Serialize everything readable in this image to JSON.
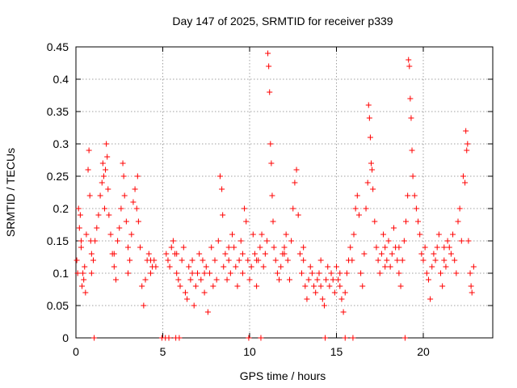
{
  "chart_data": {
    "type": "scatter",
    "title": "Day 147 of 2025, SRMTID for receiver p339",
    "xlabel": "GPS time / hours",
    "ylabel": "SRMTID / TECUs",
    "xlim": [
      0,
      24
    ],
    "ylim": [
      0,
      0.45
    ],
    "x_ticks": [
      0,
      5,
      10,
      15,
      20
    ],
    "y_ticks": [
      0,
      0.05,
      0.1,
      0.15,
      0.2,
      0.25,
      0.3,
      0.35,
      0.4,
      0.45
    ],
    "x_tick_labels": [
      "0",
      "5",
      "10",
      "15",
      "20"
    ],
    "y_tick_labels": [
      "0",
      "0.05",
      "0.1",
      "0.15",
      "0.2",
      "0.25",
      "0.3",
      "0.35",
      "0.4",
      "0.45"
    ],
    "grid": true,
    "marker": "+",
    "color": "#ff0000",
    "series": [
      {
        "name": "SRMTID",
        "points": [
          [
            0.05,
            0.12
          ],
          [
            0.1,
            0.1
          ],
          [
            0.15,
            0.2
          ],
          [
            0.2,
            0.17
          ],
          [
            0.25,
            0.19
          ],
          [
            0.3,
            0.15
          ],
          [
            0.35,
            0.08
          ],
          [
            0.4,
            0.1
          ],
          [
            0.45,
            0.09
          ],
          [
            0.5,
            0.11
          ],
          [
            0.55,
            0.07
          ],
          [
            0.6,
            0.16
          ],
          [
            0.7,
            0.26
          ],
          [
            0.75,
            0.29
          ],
          [
            0.8,
            0.22
          ],
          [
            0.85,
            0.15
          ],
          [
            0.9,
            0.13
          ],
          [
            1.0,
            0.12
          ],
          [
            1.1,
            0.15
          ],
          [
            1.2,
            0.17
          ],
          [
            1.3,
            0.19
          ],
          [
            1.4,
            0.22
          ],
          [
            1.5,
            0.24
          ],
          [
            1.55,
            0.27
          ],
          [
            1.6,
            0.25
          ],
          [
            1.65,
            0.2
          ],
          [
            1.7,
            0.26
          ],
          [
            1.75,
            0.3
          ],
          [
            1.8,
            0.28
          ],
          [
            1.85,
            0.23
          ],
          [
            1.9,
            0.19
          ],
          [
            2.0,
            0.16
          ],
          [
            2.1,
            0.13
          ],
          [
            2.2,
            0.11
          ],
          [
            2.3,
            0.09
          ],
          [
            2.4,
            0.15
          ],
          [
            2.5,
            0.17
          ],
          [
            2.6,
            0.2
          ],
          [
            2.7,
            0.27
          ],
          [
            2.75,
            0.25
          ],
          [
            2.8,
            0.22
          ],
          [
            2.9,
            0.18
          ],
          [
            3.0,
            0.14
          ],
          [
            3.1,
            0.12
          ],
          [
            3.2,
            0.16
          ],
          [
            3.3,
            0.21
          ],
          [
            3.4,
            0.23
          ],
          [
            3.5,
            0.2
          ],
          [
            3.55,
            0.25
          ],
          [
            3.6,
            0.18
          ],
          [
            3.7,
            0.14
          ],
          [
            3.8,
            0.08
          ],
          [
            3.9,
            0.05
          ],
          [
            4.0,
            0.09
          ],
          [
            4.1,
            0.12
          ],
          [
            4.2,
            0.13
          ],
          [
            4.3,
            0.1
          ],
          [
            4.4,
            0.11
          ],
          [
            4.5,
            0.12
          ],
          [
            4.6,
            0.11
          ],
          [
            5.2,
            0.13
          ],
          [
            5.3,
            0.12
          ],
          [
            5.4,
            0.11
          ],
          [
            5.5,
            0.14
          ],
          [
            5.6,
            0.15
          ],
          [
            5.7,
            0.13
          ],
          [
            5.8,
            0.1
          ],
          [
            5.9,
            0.09
          ],
          [
            6.0,
            0.08
          ],
          [
            6.1,
            0.12
          ],
          [
            6.2,
            0.14
          ],
          [
            6.3,
            0.07
          ],
          [
            6.4,
            0.06
          ],
          [
            6.5,
            0.11
          ],
          [
            6.6,
            0.09
          ],
          [
            6.7,
            0.12
          ],
          [
            6.8,
            0.05
          ],
          [
            6.9,
            0.08
          ],
          [
            7.0,
            0.1
          ],
          [
            7.1,
            0.13
          ],
          [
            7.2,
            0.09
          ],
          [
            7.3,
            0.12
          ],
          [
            7.4,
            0.07
          ],
          [
            7.5,
            0.11
          ],
          [
            7.6,
            0.04
          ],
          [
            7.7,
            0.1
          ],
          [
            7.8,
            0.14
          ],
          [
            7.9,
            0.08
          ],
          [
            8.0,
            0.12
          ],
          [
            8.1,
            0.09
          ],
          [
            8.2,
            0.15
          ],
          [
            8.3,
            0.25
          ],
          [
            8.4,
            0.23
          ],
          [
            8.45,
            0.19
          ],
          [
            8.5,
            0.11
          ],
          [
            8.6,
            0.13
          ],
          [
            8.7,
            0.09
          ],
          [
            8.8,
            0.12
          ],
          [
            8.9,
            0.1
          ],
          [
            9.0,
            0.16
          ],
          [
            9.1,
            0.14
          ],
          [
            9.2,
            0.11
          ],
          [
            9.3,
            0.08
          ],
          [
            9.4,
            0.12
          ],
          [
            9.5,
            0.15
          ],
          [
            9.6,
            0.13
          ],
          [
            9.7,
            0.2
          ],
          [
            9.8,
            0.18
          ],
          [
            9.9,
            0.12
          ],
          [
            10.0,
            0.09
          ],
          [
            10.1,
            0.11
          ],
          [
            10.2,
            0.16
          ],
          [
            10.3,
            0.13
          ],
          [
            10.4,
            0.08
          ],
          [
            10.5,
            0.12
          ],
          [
            10.6,
            0.14
          ],
          [
            10.7,
            0.16
          ],
          [
            10.8,
            0.11
          ],
          [
            10.9,
            0.13
          ],
          [
            11.0,
            0.15
          ],
          [
            11.05,
            0.44
          ],
          [
            11.1,
            0.42
          ],
          [
            11.15,
            0.38
          ],
          [
            11.2,
            0.3
          ],
          [
            11.25,
            0.27
          ],
          [
            11.3,
            0.22
          ],
          [
            11.35,
            0.18
          ],
          [
            11.4,
            0.14
          ],
          [
            11.5,
            0.12
          ],
          [
            11.6,
            0.1
          ],
          [
            11.7,
            0.09
          ],
          [
            11.8,
            0.11
          ],
          [
            11.9,
            0.13
          ],
          [
            12.0,
            0.14
          ],
          [
            12.1,
            0.16
          ],
          [
            12.2,
            0.12
          ],
          [
            12.3,
            0.09
          ],
          [
            12.4,
            0.15
          ],
          [
            12.5,
            0.2
          ],
          [
            12.6,
            0.24
          ],
          [
            12.7,
            0.26
          ],
          [
            12.8,
            0.19
          ],
          [
            12.9,
            0.13
          ],
          [
            13.0,
            0.1
          ],
          [
            13.1,
            0.12
          ],
          [
            13.2,
            0.08
          ],
          [
            13.3,
            0.06
          ],
          [
            13.4,
            0.09
          ],
          [
            13.5,
            0.11
          ],
          [
            13.6,
            0.1
          ],
          [
            13.7,
            0.08
          ],
          [
            13.8,
            0.07
          ],
          [
            13.9,
            0.09
          ],
          [
            14.0,
            0.1
          ],
          [
            14.1,
            0.08
          ],
          [
            14.2,
            0.06
          ],
          [
            14.3,
            0.05
          ],
          [
            14.4,
            0.09
          ],
          [
            14.5,
            0.11
          ],
          [
            14.6,
            0.08
          ],
          [
            14.7,
            0.1
          ],
          [
            14.8,
            0.09
          ],
          [
            14.9,
            0.07
          ],
          [
            15.0,
            0.11
          ],
          [
            15.1,
            0.09
          ],
          [
            15.2,
            0.08
          ],
          [
            15.3,
            0.06
          ],
          [
            15.4,
            0.04
          ],
          [
            15.5,
            0.07
          ],
          [
            15.6,
            0.1
          ],
          [
            15.7,
            0.12
          ],
          [
            15.8,
            0.14
          ],
          [
            15.9,
            0.12
          ],
          [
            16.0,
            0.16
          ],
          [
            16.1,
            0.2
          ],
          [
            16.2,
            0.22
          ],
          [
            16.3,
            0.19
          ],
          [
            16.4,
            0.1
          ],
          [
            16.5,
            0.08
          ],
          [
            16.6,
            0.13
          ],
          [
            16.7,
            0.2
          ],
          [
            16.8,
            0.24
          ],
          [
            16.85,
            0.36
          ],
          [
            16.9,
            0.34
          ],
          [
            16.95,
            0.31
          ],
          [
            17.0,
            0.27
          ],
          [
            17.05,
            0.26
          ],
          [
            17.1,
            0.23
          ],
          [
            17.2,
            0.18
          ],
          [
            17.3,
            0.14
          ],
          [
            17.4,
            0.12
          ],
          [
            17.5,
            0.1
          ],
          [
            17.6,
            0.13
          ],
          [
            17.7,
            0.16
          ],
          [
            17.8,
            0.14
          ],
          [
            17.9,
            0.12
          ],
          [
            18.0,
            0.15
          ],
          [
            18.1,
            0.11
          ],
          [
            18.2,
            0.13
          ],
          [
            18.3,
            0.17
          ],
          [
            18.4,
            0.14
          ],
          [
            18.5,
            0.12
          ],
          [
            18.6,
            0.1
          ],
          [
            18.7,
            0.08
          ],
          [
            18.8,
            0.12
          ],
          [
            18.9,
            0.15
          ],
          [
            19.0,
            0.18
          ],
          [
            19.1,
            0.22
          ],
          [
            19.15,
            0.43
          ],
          [
            19.2,
            0.42
          ],
          [
            19.25,
            0.37
          ],
          [
            19.3,
            0.34
          ],
          [
            19.35,
            0.29
          ],
          [
            19.4,
            0.25
          ],
          [
            19.5,
            0.22
          ],
          [
            19.6,
            0.2
          ],
          [
            19.7,
            0.18
          ],
          [
            19.8,
            0.16
          ],
          [
            19.9,
            0.13
          ],
          [
            20.0,
            0.12
          ],
          [
            20.1,
            0.14
          ],
          [
            20.2,
            0.1
          ],
          [
            20.3,
            0.09
          ],
          [
            20.4,
            0.06
          ],
          [
            20.5,
            0.11
          ],
          [
            20.6,
            0.13
          ],
          [
            20.7,
            0.12
          ],
          [
            20.8,
            0.14
          ],
          [
            20.9,
            0.16
          ],
          [
            21.0,
            0.1
          ],
          [
            21.1,
            0.08
          ],
          [
            21.2,
            0.12
          ],
          [
            21.3,
            0.11
          ],
          [
            21.4,
            0.15
          ],
          [
            21.5,
            0.14
          ],
          [
            21.6,
            0.13
          ],
          [
            21.7,
            0.16
          ],
          [
            21.8,
            0.12
          ],
          [
            21.9,
            0.1
          ],
          [
            22.0,
            0.18
          ],
          [
            22.1,
            0.2
          ],
          [
            22.2,
            0.15
          ],
          [
            22.3,
            0.25
          ],
          [
            22.4,
            0.24
          ],
          [
            22.45,
            0.32
          ],
          [
            22.5,
            0.29
          ],
          [
            22.55,
            0.3
          ],
          [
            22.6,
            0.15
          ],
          [
            22.7,
            0.1
          ],
          [
            22.75,
            0.08
          ],
          [
            22.8,
            0.07
          ],
          [
            22.9,
            0.11
          ],
          [
            0.3,
            0.14
          ],
          [
            0.9,
            0.1
          ],
          [
            2.2,
            0.13
          ],
          [
            3.0,
            0.1
          ],
          [
            4.3,
            0.12
          ],
          [
            5.8,
            0.13
          ],
          [
            6.7,
            0.1
          ],
          [
            7.4,
            0.1
          ],
          [
            8.8,
            0.14
          ],
          [
            9.6,
            0.1
          ],
          [
            10.4,
            0.12
          ],
          [
            12.0,
            0.13
          ],
          [
            13.1,
            0.14
          ],
          [
            14.1,
            0.12
          ],
          [
            15.2,
            0.1
          ],
          [
            17.8,
            0.11
          ],
          [
            18.6,
            0.14
          ],
          [
            21.2,
            0.14
          ],
          [
            1.05,
            0
          ],
          [
            4.95,
            0
          ],
          [
            5.15,
            0
          ],
          [
            5.35,
            0
          ],
          [
            5.75,
            0
          ],
          [
            5.95,
            0
          ],
          [
            9.95,
            0
          ],
          [
            10.65,
            0
          ],
          [
            14.35,
            0
          ],
          [
            15.5,
            0
          ],
          [
            15.95,
            0
          ],
          [
            18.95,
            0
          ]
        ]
      }
    ]
  }
}
